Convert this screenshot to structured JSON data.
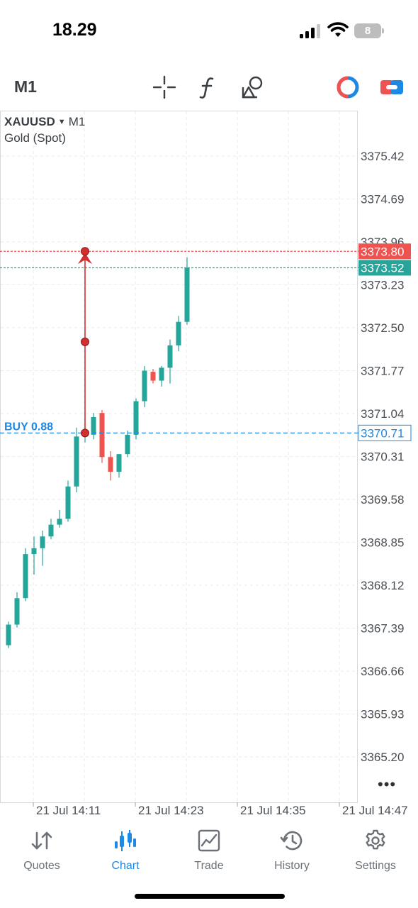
{
  "status_bar": {
    "time": "18.29",
    "battery_level": "8",
    "signal_bars_active": 3,
    "signal_bars_total": 4
  },
  "toolbar": {
    "timeframe": "M1",
    "icons": [
      "crosshair-icon",
      "indicators-icon",
      "objects-icon",
      "trade-toggle-icon",
      "chart-switch-icon"
    ],
    "accent_color": "#1e88e5"
  },
  "chart": {
    "symbol": "XAUUSD",
    "timeframe": "M1",
    "description": "Gold (Spot)",
    "bid_price": "3373.52",
    "ask_price": "3373.80",
    "bid_color": "#26a69a",
    "ask_color": "#ef5350",
    "position_label": "BUY 0.88",
    "position_price": "3370.71",
    "position_color": "#1e88e5",
    "price_ticks": [
      "3375.42",
      "3374.69",
      "3373.96",
      "3373.23",
      "3372.50",
      "3371.77",
      "3371.04",
      "3370.31",
      "3369.58",
      "3368.85",
      "3368.12",
      "3367.39",
      "3366.66",
      "3365.93",
      "3365.20"
    ],
    "time_ticks": [
      "21 Jul 14:11",
      "21 Jul 14:23",
      "21 Jul 14:35",
      "21 Jul 14:47"
    ],
    "more_label": "•••",
    "candles": [
      {
        "o": 3367.1,
        "h": 3367.5,
        "l": 3367.05,
        "c": 3367.45
      },
      {
        "o": 3367.45,
        "h": 3368.0,
        "l": 3367.4,
        "c": 3367.9
      },
      {
        "o": 3367.9,
        "h": 3368.75,
        "l": 3367.85,
        "c": 3368.65
      },
      {
        "o": 3368.65,
        "h": 3368.95,
        "l": 3368.3,
        "c": 3368.75
      },
      {
        "o": 3368.75,
        "h": 3369.05,
        "l": 3368.45,
        "c": 3368.95
      },
      {
        "o": 3368.95,
        "h": 3369.25,
        "l": 3368.9,
        "c": 3369.15
      },
      {
        "o": 3369.15,
        "h": 3369.4,
        "l": 3369.1,
        "c": 3369.25
      },
      {
        "o": 3369.25,
        "h": 3369.9,
        "l": 3369.2,
        "c": 3369.8
      },
      {
        "o": 3369.8,
        "h": 3370.8,
        "l": 3369.7,
        "c": 3370.65
      },
      {
        "o": 3370.65,
        "h": 3370.8,
        "l": 3370.55,
        "c": 3370.68
      },
      {
        "o": 3370.68,
        "h": 3371.05,
        "l": 3370.6,
        "c": 3370.98
      },
      {
        "o": 3371.05,
        "h": 3371.1,
        "l": 3370.2,
        "c": 3370.3
      },
      {
        "o": 3370.3,
        "h": 3370.4,
        "l": 3369.9,
        "c": 3370.05
      },
      {
        "o": 3370.05,
        "h": 3370.35,
        "l": 3369.95,
        "c": 3370.35
      },
      {
        "o": 3370.35,
        "h": 3370.75,
        "l": 3370.3,
        "c": 3370.68
      },
      {
        "o": 3370.68,
        "h": 3371.3,
        "l": 3370.6,
        "c": 3371.25
      },
      {
        "o": 3371.25,
        "h": 3371.85,
        "l": 3371.15,
        "c": 3371.77
      },
      {
        "o": 3371.75,
        "h": 3371.8,
        "l": 3371.55,
        "c": 3371.6
      },
      {
        "o": 3371.6,
        "h": 3371.85,
        "l": 3371.5,
        "c": 3371.82
      },
      {
        "o": 3371.82,
        "h": 3372.3,
        "l": 3371.55,
        "c": 3372.2
      },
      {
        "o": 3372.2,
        "h": 3372.7,
        "l": 3372.1,
        "c": 3372.6
      },
      {
        "o": 3372.6,
        "h": 3373.7,
        "l": 3372.55,
        "c": 3373.52
      }
    ],
    "measure_points": [
      "3370.71",
      "3372.26",
      "3373.80"
    ]
  },
  "bottom_nav": {
    "items": [
      {
        "label": "Quotes",
        "icon": "quotes-icon",
        "active": false
      },
      {
        "label": "Chart",
        "icon": "chart-icon",
        "active": true
      },
      {
        "label": "Trade",
        "icon": "trade-icon",
        "active": false
      },
      {
        "label": "History",
        "icon": "history-icon",
        "active": false
      },
      {
        "label": "Settings",
        "icon": "settings-icon",
        "active": false
      }
    ]
  }
}
